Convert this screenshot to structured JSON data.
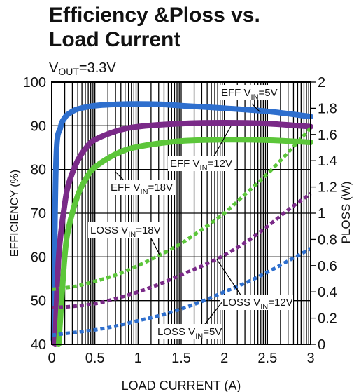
{
  "chart_data": {
    "type": "line",
    "title_lines": [
      "Efficiency &Ploss vs.",
      "Load Current"
    ],
    "subtitle": {
      "main": "V",
      "sub": "OUT",
      "rest": "=3.3V"
    },
    "xlabel": "LOAD CURRENT (A)",
    "ylabel": "EFFICIENCY (%)",
    "y2label": "PLOSS (W)",
    "xlim": [
      0,
      3
    ],
    "ylim": [
      40,
      100
    ],
    "y2lim": [
      0,
      2
    ],
    "x_ticks": [
      "0",
      "0.5",
      "1",
      "1.5",
      "2",
      "2.5",
      "3"
    ],
    "x_tick_values": [
      0,
      0.5,
      1,
      1.5,
      2,
      2.5,
      3
    ],
    "y_ticks": [
      "40",
      "50",
      "60",
      "70",
      "80",
      "90",
      "100"
    ],
    "y_tick_values": [
      40,
      50,
      60,
      70,
      80,
      90,
      100
    ],
    "y2_ticks": [
      "0",
      "0.2",
      "0.4",
      "0.6",
      "0.8",
      "1",
      "1.2",
      "1.4",
      "1.6",
      "1.8",
      "2"
    ],
    "y2_tick_values": [
      0,
      0.2,
      0.4,
      0.6,
      0.8,
      1,
      1.2,
      1.4,
      1.6,
      1.8,
      2
    ],
    "grid": true,
    "x_grid_log_style": true,
    "series": [
      {
        "name": "EFF VIN=5V",
        "axis": "left",
        "style": "solid",
        "color": "#2e6fce",
        "x": [
          0.02,
          0.05,
          0.1,
          0.15,
          0.2,
          0.3,
          0.5,
          0.75,
          1.0,
          1.25,
          1.5,
          2.0,
          2.5,
          3.0
        ],
        "y": [
          41,
          82,
          89.5,
          91.8,
          92.8,
          93.8,
          94.6,
          94.9,
          95.0,
          94.9,
          94.6,
          94.0,
          93.3,
          92.1
        ]
      },
      {
        "name": "EFF VIN=12V",
        "axis": "left",
        "style": "solid",
        "color": "#7a2a88",
        "x": [
          0.04,
          0.08,
          0.15,
          0.2,
          0.3,
          0.4,
          0.5,
          0.75,
          1.0,
          1.5,
          2.0,
          2.5,
          3.0
        ],
        "y": [
          40,
          60,
          72,
          77,
          82,
          85,
          86.8,
          88.8,
          89.8,
          90.5,
          90.7,
          90.5,
          89.8
        ]
      },
      {
        "name": "EFF VIN=18V",
        "axis": "left",
        "style": "solid",
        "color": "#5cc63a",
        "x": [
          0.08,
          0.15,
          0.2,
          0.3,
          0.4,
          0.5,
          0.75,
          1.0,
          1.5,
          2.0,
          2.5,
          3.0
        ],
        "y": [
          40,
          60,
          67,
          74,
          78,
          80.5,
          83.6,
          85.2,
          86.5,
          86.8,
          86.7,
          86.2
        ]
      },
      {
        "name": "LOSS VIN=18V",
        "axis": "right",
        "style": "dashed",
        "color": "#5cc63a",
        "x": [
          0,
          0.25,
          0.5,
          0.75,
          1.0,
          1.25,
          1.5,
          1.75,
          2.0,
          2.25,
          2.5,
          2.75,
          3.0
        ],
        "y": [
          0.42,
          0.44,
          0.48,
          0.53,
          0.6,
          0.68,
          0.77,
          0.88,
          1.0,
          1.15,
          1.3,
          1.47,
          1.65
        ]
      },
      {
        "name": "LOSS VIN=12V",
        "axis": "right",
        "style": "dashed",
        "color": "#7a2a88",
        "x": [
          0,
          0.25,
          0.5,
          0.75,
          1.0,
          1.25,
          1.5,
          1.75,
          2.0,
          2.25,
          2.5,
          2.75,
          3.0
        ],
        "y": [
          0.28,
          0.29,
          0.31,
          0.35,
          0.4,
          0.46,
          0.53,
          0.6,
          0.68,
          0.78,
          0.9,
          1.03,
          1.15
        ]
      },
      {
        "name": "LOSS VIN=5V",
        "axis": "right",
        "style": "dashed",
        "color": "#2e6fce",
        "x": [
          0,
          0.25,
          0.5,
          0.75,
          1.0,
          1.25,
          1.5,
          1.75,
          2.0,
          2.25,
          2.5,
          2.75,
          3.0
        ],
        "y": [
          0.07,
          0.09,
          0.11,
          0.14,
          0.18,
          0.22,
          0.27,
          0.33,
          0.4,
          0.47,
          0.55,
          0.64,
          0.73
        ]
      }
    ],
    "annotations": [
      {
        "id": "eff5",
        "main": "EFF V",
        "sub": "IN",
        "rest": "=5V"
      },
      {
        "id": "eff12",
        "main": "EFF V",
        "sub": "IN",
        "rest": "=12V"
      },
      {
        "id": "eff18",
        "main": "EFF V",
        "sub": "IN",
        "rest": "=18V"
      },
      {
        "id": "loss18",
        "main": "LOSS V",
        "sub": "IN",
        "rest": "=18V"
      },
      {
        "id": "loss12",
        "main": "LOSS V",
        "sub": "IN",
        "rest": "=12V"
      },
      {
        "id": "loss5",
        "main": "LOSS V",
        "sub": "IN",
        "rest": "=5V"
      }
    ]
  }
}
